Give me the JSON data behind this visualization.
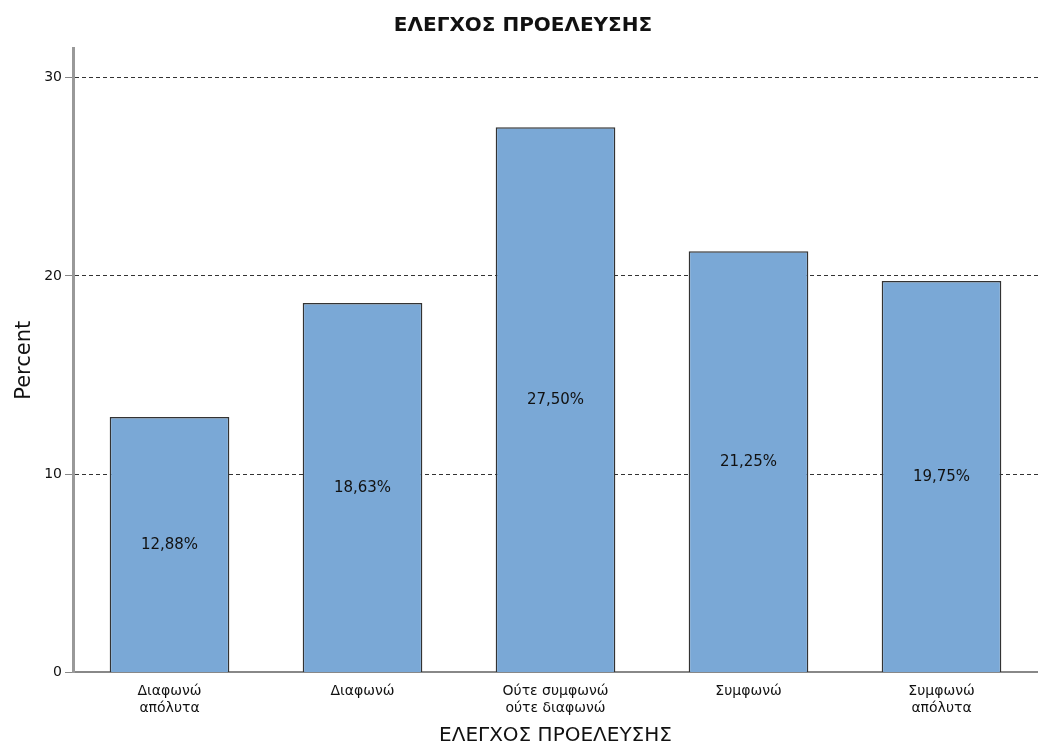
{
  "chart_data": {
    "type": "bar",
    "title": "ΕΛΕΓΧΟΣ ΠΡΟΕΛΕΥΣΗΣ",
    "xlabel": "ΕΛΕΓΧΟΣ ΠΡΟΕΛΕΥΣΗΣ",
    "ylabel": "Percent",
    "categories": [
      "Διαφωνώ απόλυτα",
      "Διαφωνώ",
      "Ούτε συμφωνώ ούτε διαφωνώ",
      "Συμφωνώ",
      "Συμφωνώ απόλυτα"
    ],
    "values": [
      12.88,
      18.63,
      27.5,
      21.25,
      19.75
    ],
    "value_labels": [
      "12,88%",
      "18,63%",
      "27,50%",
      "21,25%",
      "19,75%"
    ],
    "color": "#7aa8d6",
    "ylim": [
      0,
      31.5
    ],
    "yticks": [
      0,
      10,
      20,
      30
    ],
    "grid": "y",
    "line_style": "dashed",
    "legend": false
  }
}
